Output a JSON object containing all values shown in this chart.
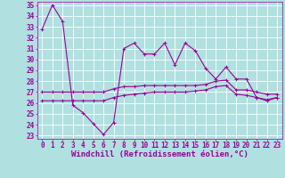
{
  "background_color": "#b0e0e0",
  "grid_color": "#ffffff",
  "line_color": "#990099",
  "xlabel": "Windchill (Refroidissement éolien,°C)",
  "xlabel_color": "#990099",
  "xlabel_fontsize": 6.5,
  "tick_color": "#990099",
  "tick_fontsize": 5.5,
  "xlim": [
    -0.5,
    23.5
  ],
  "ylim": [
    22.7,
    35.3
  ],
  "yticks": [
    23,
    24,
    25,
    26,
    27,
    28,
    29,
    30,
    31,
    32,
    33,
    34,
    35
  ],
  "xticks": [
    0,
    1,
    2,
    3,
    4,
    5,
    6,
    7,
    8,
    9,
    10,
    11,
    12,
    13,
    14,
    15,
    16,
    17,
    18,
    19,
    20,
    21,
    22,
    23
  ],
  "line1_x": [
    0,
    1,
    2,
    3,
    4,
    5,
    6,
    7,
    8,
    9,
    10,
    11,
    12,
    13,
    14,
    15,
    16,
    17,
    18,
    19,
    20,
    21,
    22,
    23
  ],
  "line1_y": [
    32.8,
    35.0,
    33.5,
    25.8,
    25.1,
    24.1,
    23.1,
    24.2,
    31.0,
    31.5,
    30.5,
    30.5,
    31.5,
    29.5,
    31.5,
    30.8,
    29.2,
    28.2,
    29.3,
    28.2,
    28.2,
    26.5,
    26.2,
    26.5
  ],
  "line2_x": [
    0,
    1,
    2,
    3,
    4,
    5,
    6,
    7,
    8,
    9,
    10,
    11,
    12,
    13,
    14,
    15,
    16,
    17,
    18,
    19,
    20,
    21,
    22,
    23
  ],
  "line2_y": [
    27.0,
    27.0,
    27.0,
    27.0,
    27.0,
    27.0,
    27.0,
    27.3,
    27.5,
    27.5,
    27.6,
    27.6,
    27.6,
    27.6,
    27.6,
    27.6,
    27.7,
    28.0,
    28.1,
    27.2,
    27.2,
    27.0,
    26.8,
    26.8
  ],
  "line3_x": [
    0,
    1,
    2,
    3,
    4,
    5,
    6,
    7,
    8,
    9,
    10,
    11,
    12,
    13,
    14,
    15,
    16,
    17,
    18,
    19,
    20,
    21,
    22,
    23
  ],
  "line3_y": [
    26.2,
    26.2,
    26.2,
    26.2,
    26.2,
    26.2,
    26.2,
    26.5,
    26.7,
    26.8,
    26.9,
    27.0,
    27.0,
    27.0,
    27.0,
    27.1,
    27.2,
    27.5,
    27.6,
    26.8,
    26.7,
    26.5,
    26.3,
    26.5
  ]
}
